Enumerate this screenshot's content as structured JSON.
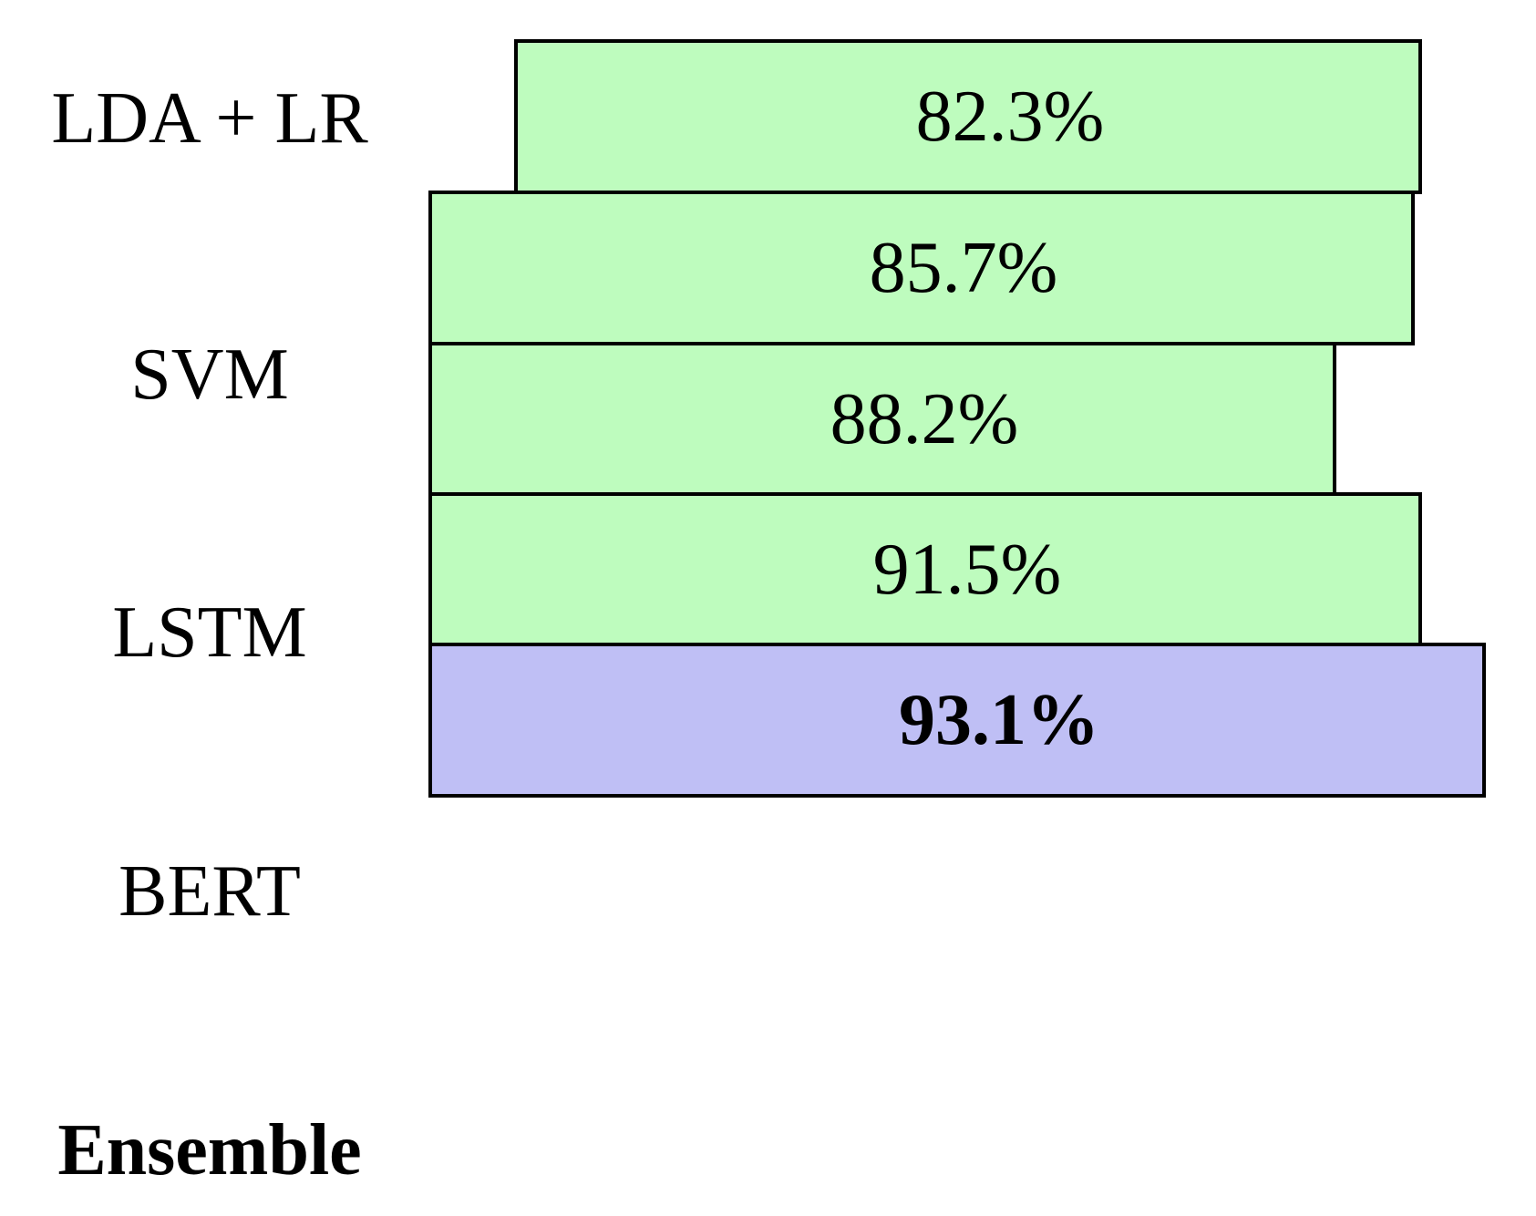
{
  "chart_data": {
    "type": "bar",
    "orientation": "horizontal",
    "title": "",
    "xlabel": "",
    "ylabel": "",
    "grid": false,
    "legend": false,
    "categories": [
      "LDA + LR",
      "SVM",
      "LSTM",
      "BERT",
      "Ensemble"
    ],
    "values": [
      82.3,
      85.7,
      88.2,
      91.5,
      93.1
    ],
    "value_labels": [
      "82.3%",
      "85.7%",
      "88.2%",
      "91.5%",
      "93.1%"
    ],
    "highlighted_index": 4,
    "highlighted_category": "Ensemble",
    "colors": {
      "bar_fill": "#BEFCBE",
      "highlight_fill": "#BFBFF5",
      "border": "#000000",
      "text": "#000000",
      "background": "#ffffff"
    }
  }
}
